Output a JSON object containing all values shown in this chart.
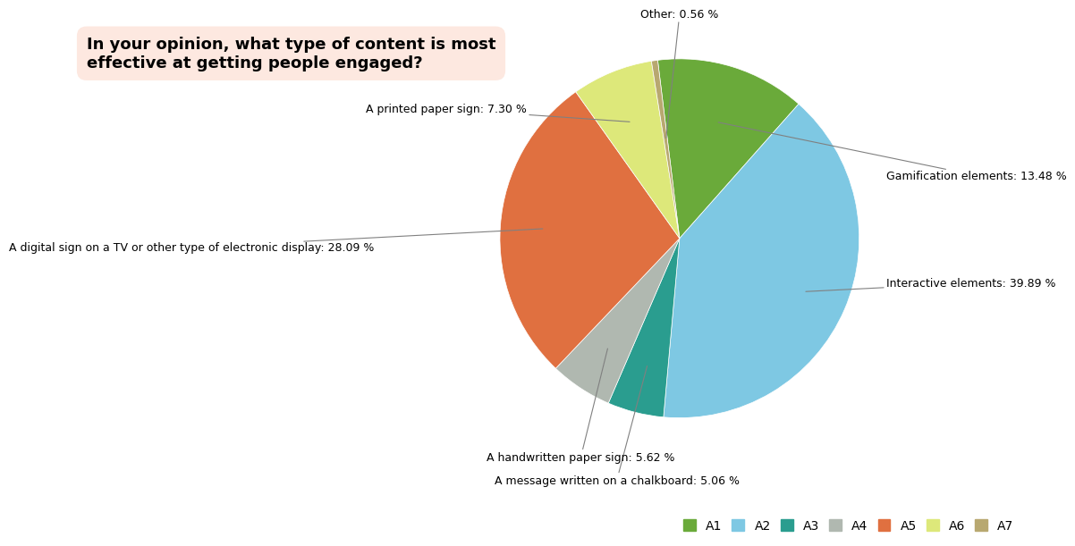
{
  "title": "In your opinion, what type of content is most\neffective at getting people engaged?",
  "title_bg": "#fde8e0",
  "slices": [
    {
      "label": "Gamification elements: 13.48 %",
      "value": 13.48,
      "color": "#6aaa3a",
      "legend": "A1"
    },
    {
      "label": "Interactive elements: 39.89 %",
      "value": 39.89,
      "color": "#7ec8e3",
      "legend": "A2"
    },
    {
      "label": "A message written on a chalkboard: 5.06 %",
      "value": 5.06,
      "color": "#2a9d8f",
      "legend": "A3"
    },
    {
      "label": "A handwritten paper sign: 5.62 %",
      "value": 5.62,
      "color": "#b0b8b0",
      "legend": "A4"
    },
    {
      "label": "A digital sign on a TV or other type of electronic display: 28.09 %",
      "value": 28.09,
      "color": "#e07040",
      "legend": "A5"
    },
    {
      "label": "A printed paper sign: 7.30 %",
      "value": 7.3,
      "color": "#dde87a",
      "legend": "A6"
    },
    {
      "label": "Other: 0.56 %",
      "value": 0.56,
      "color": "#b8a870",
      "legend": "A7"
    }
  ],
  "legend_labels": [
    "A1",
    "A2",
    "A3",
    "A4",
    "A5",
    "A6",
    "A7"
  ],
  "legend_colors": [
    "#6aaa3a",
    "#7ec8e3",
    "#2a9d8f",
    "#b0b8b0",
    "#e07040",
    "#dde87a",
    "#b8a870"
  ]
}
